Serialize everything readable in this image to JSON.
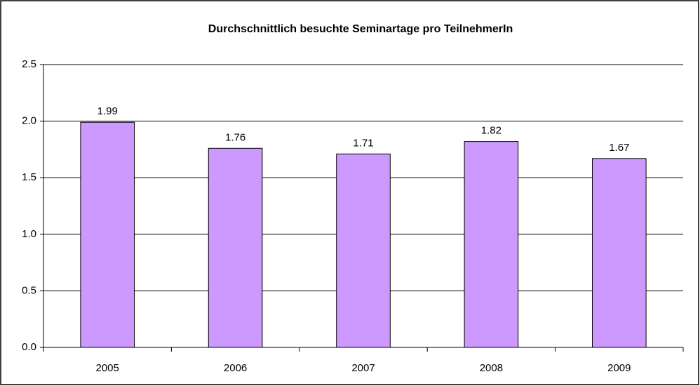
{
  "chart_data": {
    "type": "bar",
    "title": "Durchschnittlich besuchte Seminartage pro TeilnehmerIn",
    "categories": [
      "2005",
      "2006",
      "2007",
      "2008",
      "2009"
    ],
    "values": [
      1.99,
      1.76,
      1.71,
      1.82,
      1.67
    ],
    "color": "#cc99ff",
    "ylim": [
      0,
      2.5
    ],
    "yticks": [
      {
        "value": 0,
        "label": "0.0"
      },
      0.5,
      {
        "value": 1,
        "label": "1.0"
      },
      1.5,
      {
        "value": 2,
        "label": "2.0"
      },
      2.5
    ],
    "grid": true
  }
}
